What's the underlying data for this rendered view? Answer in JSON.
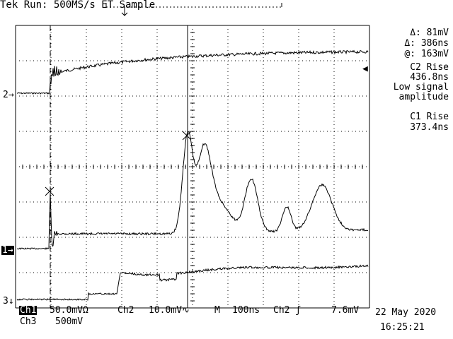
{
  "status": {
    "state": "Tek Run: 500MS/s ET Sample"
  },
  "measurements": {
    "delta_v": "Δ: 81mV",
    "delta_t": "Δ: 386ns",
    "at_v": "@: 163mV",
    "c2_rise_label": "C2 Rise",
    "c2_rise_value": "436.8ns",
    "warning_line1": "Low signal",
    "warning_line2": "amplitude",
    "c1_rise_label": "C1 Rise",
    "c1_rise_value": "373.4ns"
  },
  "markers": {
    "ch2": "2",
    "ch1": "1",
    "ch3": "3"
  },
  "bottom": {
    "ch1_name": "Ch1",
    "ch1_scale": "50.0mVΩ",
    "ch2_name": "Ch2",
    "ch2_scale": "10.0mV",
    "ch2_bw": "∿",
    "time_label": "M",
    "time_scale": "100ns",
    "trigger_source": "Ch2",
    "trigger_slope": "ʃ",
    "trigger_level": "7.6mV",
    "ch3_name": "Ch3",
    "ch3_scale": "500mV",
    "date": "22 May 2020",
    "time": "16:25:21"
  },
  "colors": {
    "trace": "#000000",
    "background": "#ffffff",
    "grid": "#000000"
  }
}
